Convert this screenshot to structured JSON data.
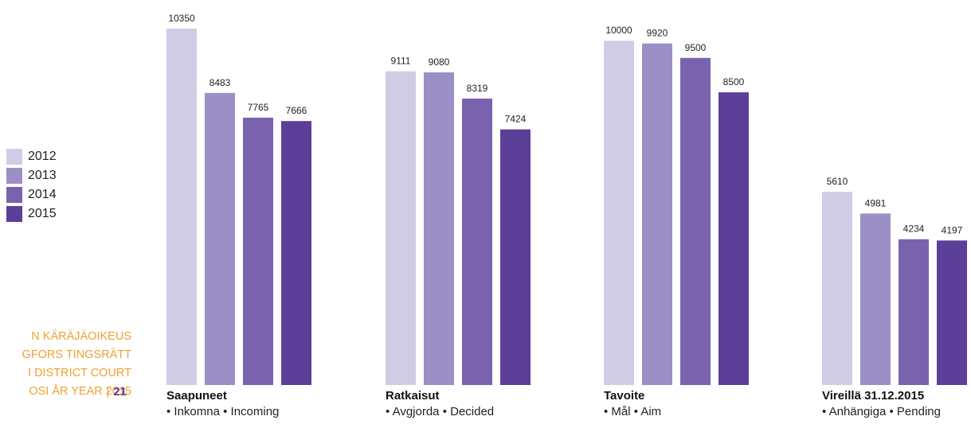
{
  "legend": {
    "items": [
      {
        "label": "2012",
        "color": "#d1cce6"
      },
      {
        "label": "2013",
        "color": "#9c8fc5"
      },
      {
        "label": "2014",
        "color": "#7a63ae"
      },
      {
        "label": "2015",
        "color": "#5c3f98"
      }
    ]
  },
  "footer": {
    "lines": [
      "N KÄRÄJÄOIKEUS",
      "GFORS TINGSRÄTT",
      "I DISTRICT COURT",
      "OSI ÅR YEAR 2015"
    ],
    "separator": "|",
    "page_number": "21"
  },
  "chart_data": {
    "type": "bar",
    "series_names": [
      "2012",
      "2013",
      "2014",
      "2015"
    ],
    "colors": [
      "#d1cce6",
      "#9c8fc5",
      "#7a63ae",
      "#5c3f98"
    ],
    "ylim": [
      0,
      11000
    ],
    "grid": false,
    "legend_position": "left",
    "groups": [
      {
        "title": "Saapuneet",
        "subtitle": "• Inkomna • Incoming",
        "values": [
          10350,
          8483,
          7765,
          7666
        ]
      },
      {
        "title": "Ratkaisut",
        "subtitle": "• Avgjorda • Decided",
        "values": [
          9111,
          9080,
          8319,
          7424
        ]
      },
      {
        "title": "Tavoite",
        "subtitle": "• Mål • Aim",
        "values": [
          10000,
          9920,
          9500,
          8500
        ]
      },
      {
        "title": "Vireillä 31.12.2015",
        "subtitle": "• Anhängiga • Pending",
        "values": [
          5610,
          4981,
          4234,
          4197
        ]
      }
    ]
  }
}
